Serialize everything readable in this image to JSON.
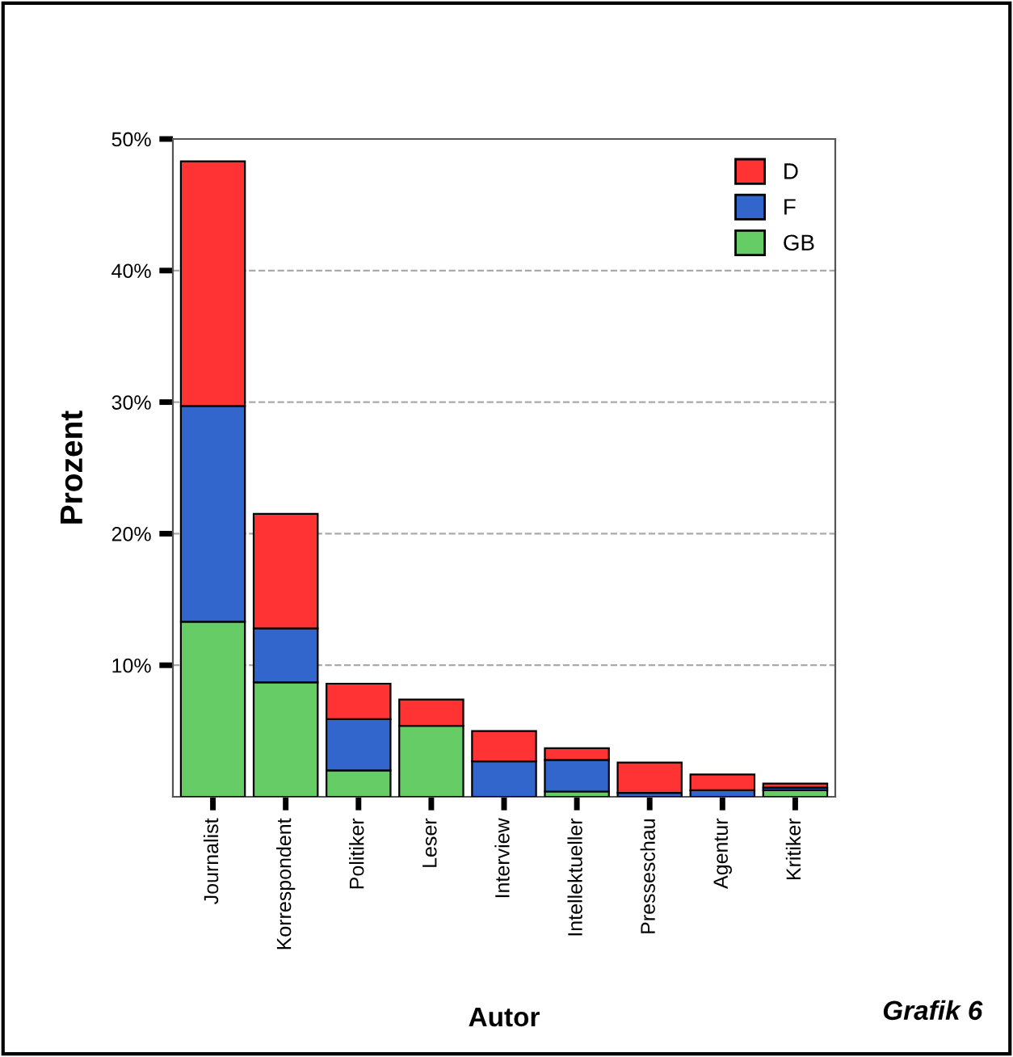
{
  "chart_data": {
    "type": "bar",
    "stacked": true,
    "xlabel": "Autor",
    "ylabel": "Prozent",
    "annotations": [
      "Grafik 6"
    ],
    "categories": [
      "Journalist",
      "Korrespondent",
      "Politiker",
      "Leser",
      "Interview",
      "Intellektueller",
      "Presseschau",
      "Agentur",
      "Kritiker"
    ],
    "series": [
      {
        "name": "GB",
        "color": "#66cc66",
        "values": [
          13.3,
          8.7,
          2.0,
          5.4,
          0,
          0.4,
          0,
          0,
          0.5
        ]
      },
      {
        "name": "F",
        "color": "#3366cc",
        "values": [
          16.4,
          4.1,
          3.9,
          0,
          2.7,
          2.4,
          0.3,
          0.5,
          0.2
        ]
      },
      {
        "name": "D",
        "color": "#ff3333",
        "values": [
          18.6,
          8.7,
          2.7,
          2.0,
          2.3,
          0.9,
          2.3,
          1.2,
          0.3
        ]
      }
    ],
    "ylim": [
      0,
      50
    ],
    "yticks": [
      {
        "value": 10,
        "label": "10%"
      },
      {
        "value": 20,
        "label": "20%"
      },
      {
        "value": 30,
        "label": "30%"
      },
      {
        "value": 40,
        "label": "40%"
      },
      {
        "value": 50,
        "label": "50%"
      }
    ],
    "grid": "y",
    "legend": "top right"
  }
}
